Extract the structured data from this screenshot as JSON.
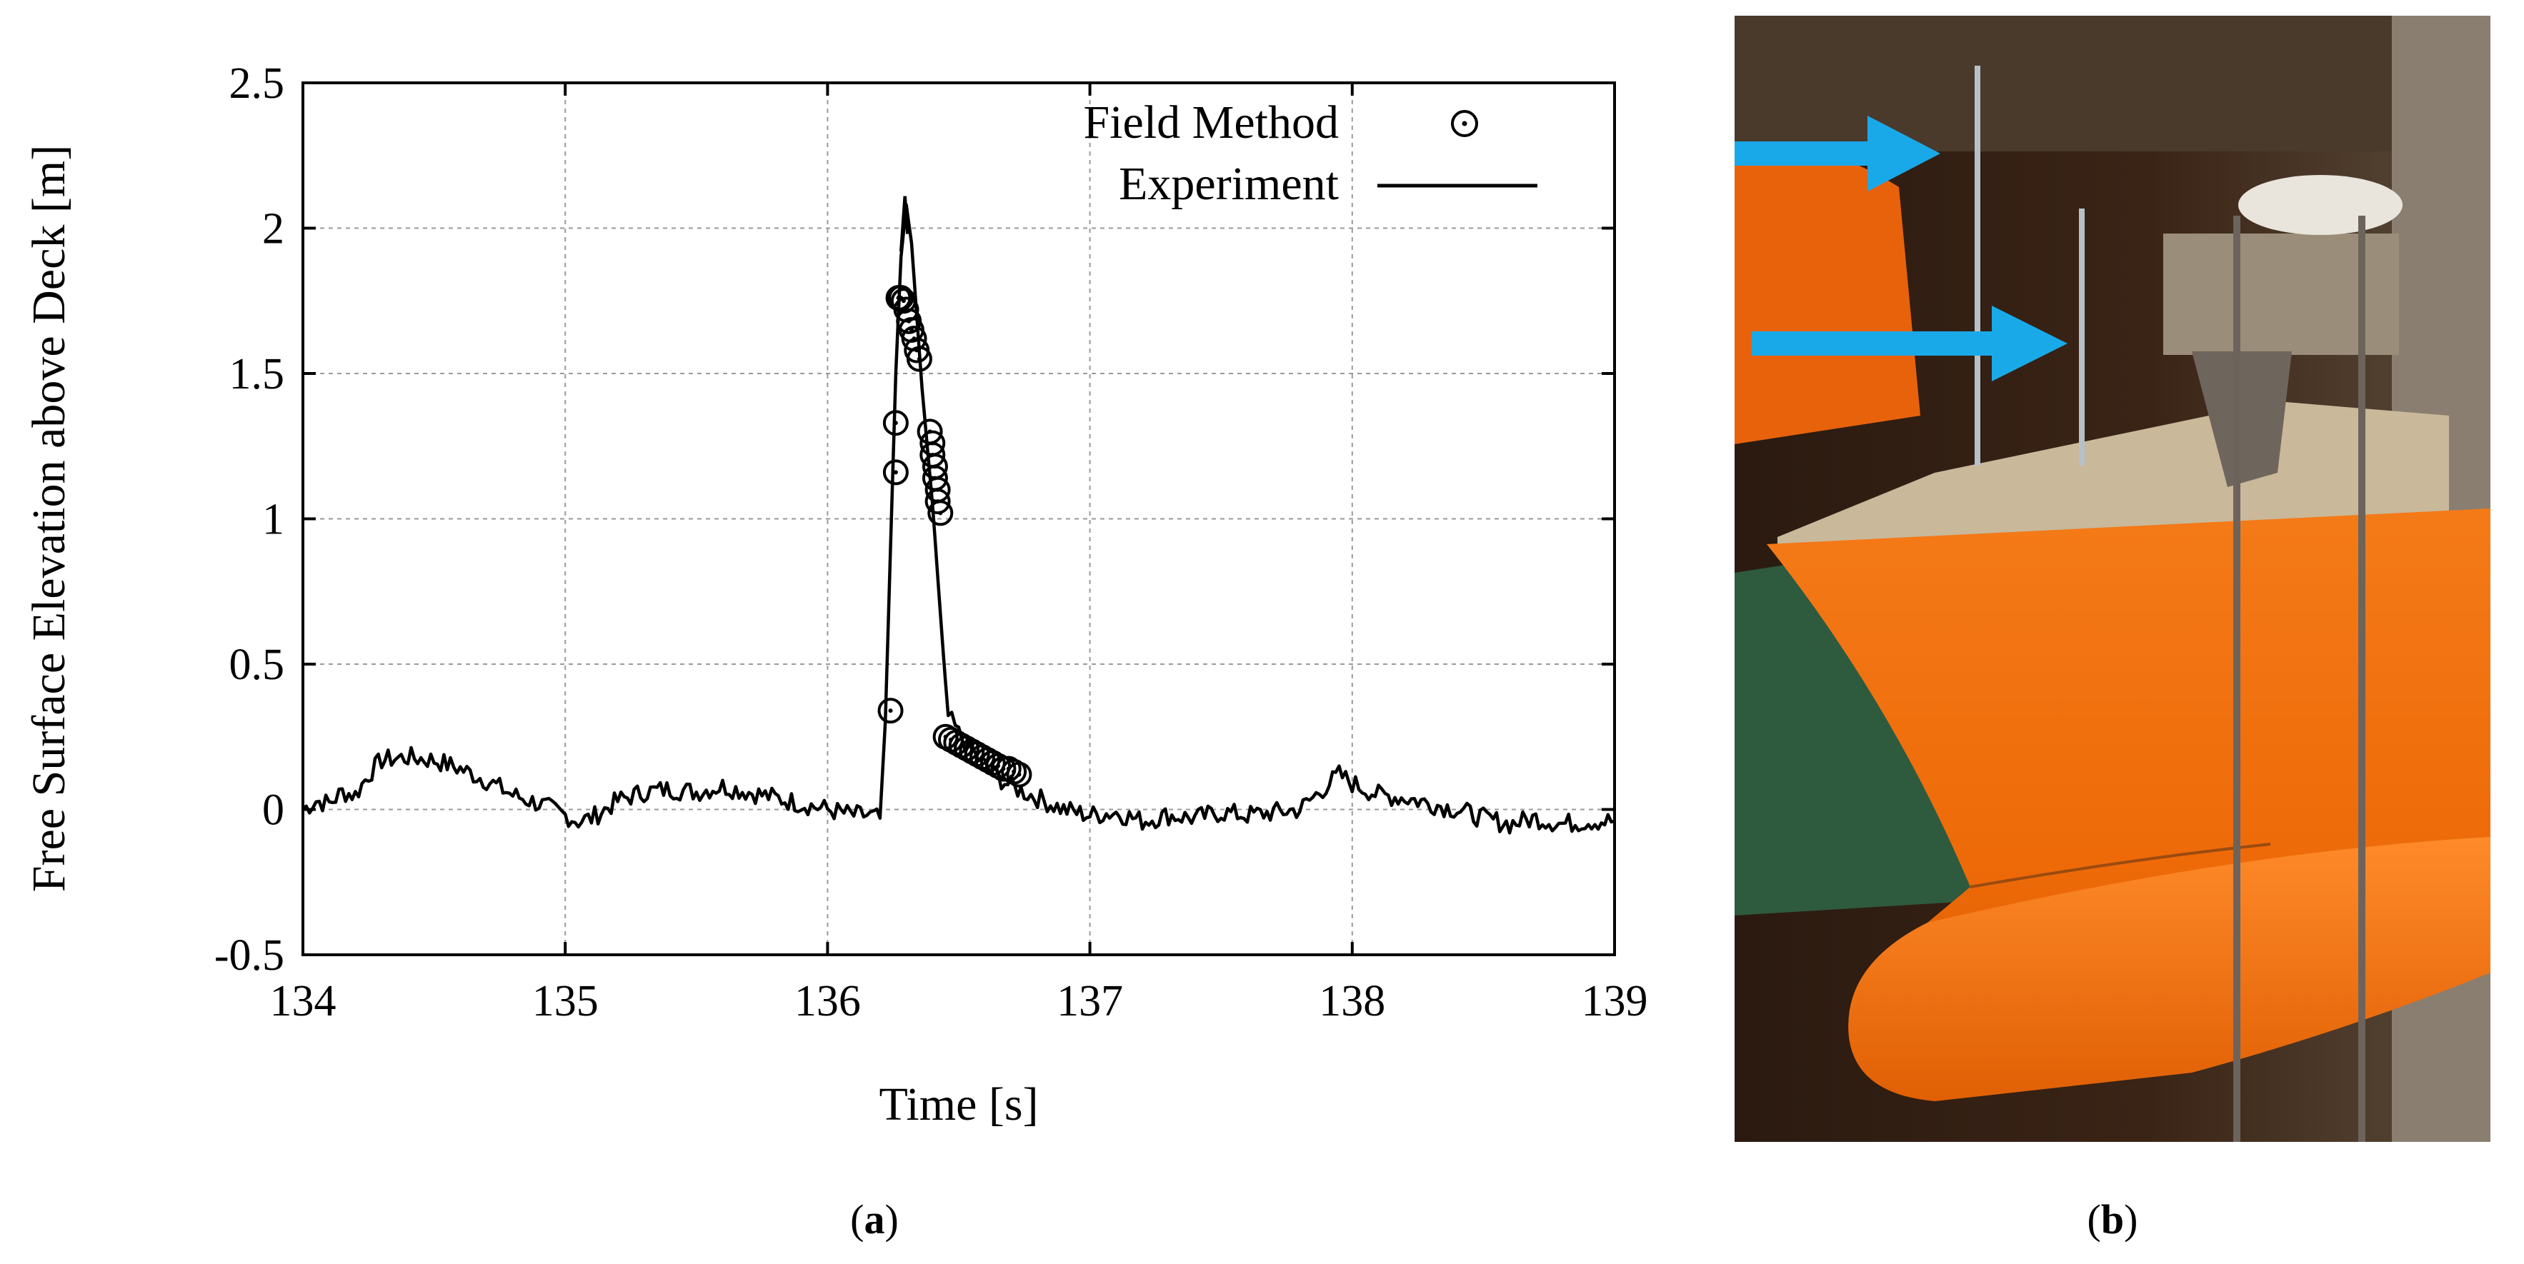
{
  "chart_data": {
    "type": "line",
    "title": "",
    "xlabel": "Time [s]",
    "ylabel": "Free Surface Elevation above Deck [m]",
    "xlim": [
      134,
      139
    ],
    "ylim": [
      -0.5,
      2.5
    ],
    "xticks": [
      134,
      135,
      136,
      137,
      138,
      139
    ],
    "xtick_labels": [
      "134",
      "135",
      "136",
      "137",
      "138",
      "139"
    ],
    "yticks": [
      -0.5,
      0,
      0.5,
      1,
      1.5,
      2,
      2.5
    ],
    "ytick_labels": [
      "-0.5",
      "0",
      "0.5",
      "1",
      "1.5",
      "2",
      "2.5"
    ],
    "grid": true,
    "legend_position": "top-right",
    "series": [
      {
        "name": "Field Method",
        "style": "open-circle markers",
        "x": [
          136.24,
          136.26,
          136.26,
          136.27,
          136.28,
          136.29,
          136.3,
          136.31,
          136.32,
          136.33,
          136.34,
          136.35,
          136.39,
          136.4,
          136.4,
          136.41,
          136.41,
          136.42,
          136.42,
          136.43,
          136.45,
          136.47,
          136.49,
          136.51,
          136.53,
          136.55,
          136.57,
          136.59,
          136.61,
          136.63,
          136.65,
          136.67,
          136.69,
          136.71,
          136.73
        ],
        "y": [
          0.34,
          1.16,
          1.33,
          1.76,
          1.76,
          1.75,
          1.72,
          1.68,
          1.65,
          1.62,
          1.58,
          1.55,
          1.3,
          1.26,
          1.22,
          1.18,
          1.14,
          1.1,
          1.06,
          1.02,
          0.25,
          0.24,
          0.23,
          0.22,
          0.21,
          0.2,
          0.19,
          0.18,
          0.17,
          0.16,
          0.15,
          0.14,
          0.14,
          0.13,
          0.12
        ]
      },
      {
        "name": "Experiment",
        "style": "solid black line",
        "x": [
          134.0,
          134.05,
          134.1,
          134.15,
          134.2,
          134.25,
          134.3,
          134.4,
          134.5,
          134.6,
          134.7,
          134.8,
          134.9,
          135.0,
          135.05,
          135.1,
          135.2,
          135.3,
          135.4,
          135.5,
          135.6,
          135.7,
          135.8,
          135.9,
          136.0,
          136.1,
          136.15,
          136.2,
          136.22,
          136.24,
          136.26,
          136.28,
          136.3,
          136.32,
          136.34,
          136.36,
          136.38,
          136.4,
          136.42,
          136.44,
          136.46,
          136.5,
          136.55,
          136.6,
          136.65,
          136.7,
          136.75,
          136.8,
          136.9,
          137.0,
          137.1,
          137.2,
          137.3,
          137.4,
          137.5,
          137.6,
          137.7,
          137.8,
          137.85,
          137.9,
          137.95,
          138.0,
          138.1,
          138.2,
          138.3,
          138.4,
          138.5,
          138.6,
          138.7,
          138.8,
          138.9,
          139.0
        ],
        "y": [
          0.0,
          0.03,
          0.02,
          0.06,
          0.05,
          0.12,
          0.17,
          0.18,
          0.17,
          0.14,
          0.1,
          0.05,
          0.02,
          -0.02,
          -0.04,
          -0.03,
          0.03,
          0.06,
          0.07,
          0.06,
          0.08,
          0.06,
          0.04,
          0.02,
          0.0,
          -0.02,
          -0.02,
          -0.03,
          0.3,
          0.9,
          1.5,
          1.9,
          2.08,
          1.95,
          1.7,
          1.45,
          1.25,
          1.05,
          0.8,
          0.55,
          0.32,
          0.26,
          0.2,
          0.15,
          0.11,
          0.08,
          0.06,
          0.04,
          0.0,
          -0.02,
          -0.01,
          -0.04,
          -0.02,
          -0.03,
          -0.01,
          -0.02,
          -0.01,
          0.0,
          0.04,
          0.08,
          0.12,
          0.09,
          0.05,
          0.04,
          0.02,
          0.0,
          -0.03,
          -0.05,
          -0.03,
          -0.05,
          -0.04,
          -0.04
        ]
      }
    ]
  },
  "captions": {
    "left": "a",
    "right": "b"
  },
  "colors": {
    "arrow": "#1aa9e8",
    "hull": "#f06a0a"
  }
}
